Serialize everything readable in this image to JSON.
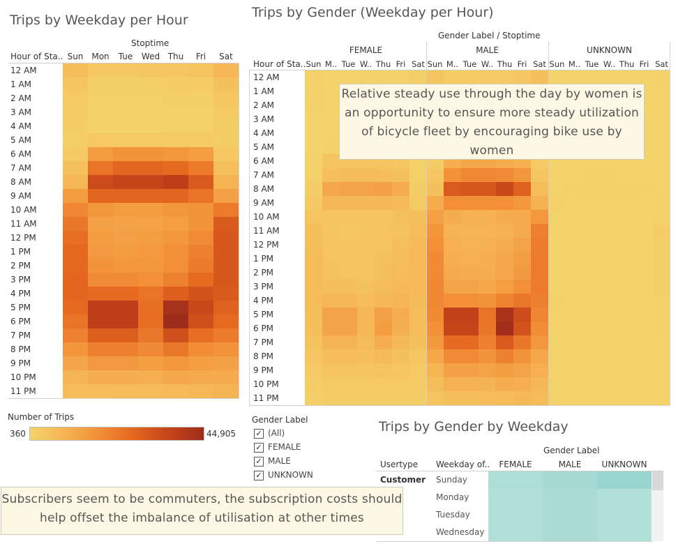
{
  "heatmap_week": {
    "title": "Trips by Weekday per Hour",
    "column_header": "Stoptime",
    "row_header": "Hour of Sta..",
    "columns": [
      "Sun",
      "Mon",
      "Tue",
      "Wed",
      "Thu",
      "Fri",
      "Sat"
    ],
    "rows": [
      "12 AM",
      "1 AM",
      "2 AM",
      "3 AM",
      "4 AM",
      "5 AM",
      "6 AM",
      "7 AM",
      "8 AM",
      "9 AM",
      "10 AM",
      "11 AM",
      "12 PM",
      "1 PM",
      "2 PM",
      "3 PM",
      "4 PM",
      "5 PM",
      "6 PM",
      "7 PM",
      "8 PM",
      "9 PM",
      "10 PM",
      "11 PM"
    ]
  },
  "heatmap_gender": {
    "title": "Trips by Gender (Weekday per Hour)",
    "column_header": "Gender Label  /  Stoptime",
    "row_header": "Hour of Sta..",
    "groups": [
      "FEMALE",
      "MALE",
      "UNKNOWN"
    ],
    "columns": [
      "Sun",
      "M..",
      "Tue",
      "W..",
      "Thu",
      "Fri",
      "Sat"
    ]
  },
  "legend": {
    "title": "Number of Trips",
    "min_label": "360",
    "max_label": "44,905",
    "colors": [
      "#f4d36b",
      "#f6b453",
      "#f28e36",
      "#e4651f",
      "#c64419",
      "#9d2d1a"
    ]
  },
  "gender_filter": {
    "title": "Gender Label",
    "items": [
      "(All)",
      "FEMALE",
      "MALE",
      "UNKNOWN"
    ],
    "checkmark": "✓"
  },
  "annotations": {
    "gender_note": "Relative steady use through the day by women is an opportunity to ensure more steady utilization of bicycle fleet by encouraging bike use by women",
    "subscriber_note": "Subscribers seem to be commuters, the subscription costs should help offset the imbalance of utilisation at other times"
  },
  "gender_weekday": {
    "title": "Trips by Gender by Weekday",
    "column_header": "Gender Label",
    "row_headers": [
      "Usertype",
      "Weekday of.."
    ],
    "columns": [
      "FEMALE",
      "MALE",
      "UNKNOWN"
    ],
    "usertype": "Customer",
    "rows": [
      "Sunday",
      "Monday",
      "Tuesday",
      "Wednesday"
    ]
  },
  "chart_data": [
    {
      "type": "heatmap",
      "title": "Trips by Weekday per Hour",
      "x": [
        "Sun",
        "Mon",
        "Tue",
        "Wed",
        "Thu",
        "Fri",
        "Sat"
      ],
      "y": [
        "12 AM",
        "1 AM",
        "2 AM",
        "3 AM",
        "4 AM",
        "5 AM",
        "6 AM",
        "7 AM",
        "8 AM",
        "9 AM",
        "10 AM",
        "11 AM",
        "12 PM",
        "1 PM",
        "2 PM",
        "3 PM",
        "4 PM",
        "5 PM",
        "6 PM",
        "7 PM",
        "8 PM",
        "9 PM",
        "10 PM",
        "11 PM"
      ],
      "zlim": [
        360,
        44905
      ],
      "values": [
        [
          6500,
          3500,
          3500,
          3800,
          4200,
          4800,
          8000
        ],
        [
          4500,
          1800,
          1700,
          1900,
          2200,
          2800,
          5500
        ],
        [
          3300,
          1200,
          1100,
          1200,
          1400,
          1800,
          4000
        ],
        [
          2500,
          900,
          800,
          900,
          1000,
          1200,
          3000
        ],
        [
          2000,
          1000,
          900,
          1000,
          1100,
          1200,
          2300
        ],
        [
          1800,
          3500,
          3300,
          3300,
          3200,
          3000,
          2000
        ],
        [
          3000,
          15000,
          17000,
          17000,
          16000,
          14500,
          3500
        ],
        [
          5500,
          24000,
          27000,
          27000,
          26000,
          22000,
          6000
        ],
        [
          8000,
          34000,
          36000,
          36000,
          38000,
          30000,
          9500
        ],
        [
          15000,
          27000,
          27000,
          27000,
          27000,
          24000,
          14000
        ],
        [
          19500,
          16000,
          15000,
          15000,
          16000,
          17000,
          22500
        ],
        [
          23000,
          14000,
          13000,
          13500,
          14500,
          17000,
          30000
        ],
        [
          25000,
          15000,
          14000,
          14500,
          16000,
          19000,
          31000
        ],
        [
          26500,
          15500,
          15000,
          15500,
          17500,
          21000,
          31000
        ],
        [
          26500,
          17000,
          16000,
          16000,
          18000,
          22000,
          31000
        ],
        [
          27000,
          19000,
          19000,
          18000,
          21000,
          26000,
          31000
        ],
        [
          27000,
          26000,
          26000,
          24000,
          29000,
          32000,
          30000
        ],
        [
          26000,
          38000,
          38000,
          25000,
          43000,
          35000,
          28000
        ],
        [
          24000,
          38000,
          38000,
          25000,
          44905,
          33000,
          26000
        ],
        [
          21000,
          29000,
          29000,
          23000,
          33000,
          25000,
          22000
        ],
        [
          16500,
          21000,
          21000,
          19000,
          23000,
          18500,
          17000
        ],
        [
          12500,
          15500,
          15500,
          14500,
          16000,
          14500,
          14000
        ],
        [
          9000,
          11000,
          11000,
          10500,
          12000,
          11500,
          11500
        ],
        [
          6500,
          6500,
          6800,
          7000,
          7500,
          8500,
          9500
        ]
      ]
    },
    {
      "type": "heatmap",
      "title": "Trips by Gender (Weekday per Hour)",
      "series": [
        {
          "name": "FEMALE",
          "values": [
            [
              1200,
              500,
              500,
              550,
              600,
              700,
              1400
            ],
            [
              800,
              250,
              250,
              260,
              300,
              350,
              1000
            ],
            [
              550,
              180,
              170,
              180,
              200,
              250,
              700
            ],
            [
              400,
              130,
              120,
              130,
              150,
              180,
              500
            ],
            [
              360,
              140,
              130,
              140,
              160,
              180,
              400
            ],
            [
              380,
              600,
              550,
              550,
              550,
              500,
              420
            ],
            [
              700,
              4500,
              5000,
              5000,
              4700,
              4200,
              800
            ],
            [
              1100,
              6000,
              6800,
              6800,
              6500,
              5500,
              1300
            ],
            [
              2000,
              12000,
              13000,
              13000,
              14000,
              11000,
              2200
            ],
            [
              3200,
              8500,
              8500,
              8500,
              8500,
              7500,
              3000
            ],
            [
              5000,
              5000,
              4500,
              4600,
              5000,
              5500,
              5800
            ],
            [
              6200,
              4500,
              4200,
              4300,
              4700,
              5200,
              7000
            ],
            [
              6500,
              4700,
              4500,
              4600,
              5000,
              5800,
              7500
            ],
            [
              7000,
              5000,
              4800,
              4900,
              5500,
              6500,
              7500
            ],
            [
              7000,
              5200,
              5000,
              5000,
              5700,
              6800,
              7500
            ],
            [
              7000,
              5800,
              5800,
              5600,
              6300,
              7800,
              7500
            ],
            [
              6800,
              8000,
              8000,
              7000,
              8500,
              9000,
              7200
            ],
            [
              6500,
              13000,
              13000,
              8000,
              14000,
              11000,
              7000
            ],
            [
              6000,
              13000,
              13000,
              8000,
              15000,
              10500,
              6500
            ],
            [
              5200,
              9500,
              9500,
              7000,
              11000,
              7800,
              5500
            ],
            [
              4000,
              6500,
              6500,
              6000,
              7200,
              5500,
              4200
            ],
            [
              3000,
              4800,
              4800,
              4500,
              5000,
              4200,
              3200
            ],
            [
              2100,
              3200,
              3200,
              3100,
              3500,
              3300,
              2600
            ],
            [
              1600,
              2000,
              2100,
              2200,
              2300,
              2500,
              2100
            ]
          ]
        },
        {
          "name": "MALE",
          "values": [
            [
              4800,
              2800,
              2800,
              3000,
              3300,
              3800,
              6000
            ],
            [
              3400,
              1450,
              1350,
              1500,
              1700,
              2200,
              4200
            ],
            [
              2600,
              950,
              880,
              950,
              1100,
              1450,
              3100
            ],
            [
              2000,
              700,
              640,
              720,
              800,
              950,
              2300
            ],
            [
              1500,
              780,
              700,
              780,
              850,
              950,
              1700
            ],
            [
              1300,
              2700,
              2600,
              2600,
              2500,
              2400,
              1400
            ],
            [
              2200,
              10500,
              12000,
              12000,
              11200,
              10200,
              2600
            ],
            [
              4100,
              17500,
              19500,
              19500,
              19000,
              16000,
              4400
            ],
            [
              5600,
              30000,
              31000,
              31000,
              35000,
              28000,
              7000
            ],
            [
              11000,
              18000,
              18000,
              18000,
              18000,
              16000,
              10000
            ],
            [
              14000,
              11000,
              10000,
              10000,
              11000,
              11500,
              16000
            ],
            [
              16500,
              9500,
              9000,
              9200,
              10000,
              11700,
              21000
            ],
            [
              18000,
              10200,
              9500,
              9900,
              11000,
              13000,
              22000
            ],
            [
              19000,
              10500,
              10200,
              10500,
              12000,
              14500,
              22000
            ],
            [
              19000,
              11700,
              11000,
              11000,
              12300,
              15200,
              22000
            ],
            [
              19500,
              13000,
              13000,
              12400,
              14700,
              18000,
              22000
            ],
            [
              19500,
              18000,
              18000,
              17000,
              20500,
              23000,
              21500
            ],
            [
              19000,
              37000,
              37000,
              24000,
              42000,
              34000,
              20000
            ],
            [
              17500,
              36000,
              36000,
              23000,
              44000,
              32000,
              18500
            ],
            [
              15300,
              26000,
              26000,
              21000,
              30000,
              23000,
              16000
            ],
            [
              12000,
              19000,
              19000,
              17000,
              21000,
              16800,
              12300
            ],
            [
              9100,
              14000,
              14000,
              13100,
              14500,
              13100,
              10200
            ],
            [
              6600,
              10000,
              10000,
              9600,
              10900,
              10400,
              8400
            ],
            [
              4700,
              6000,
              6200,
              6400,
              6900,
              7700,
              7000
            ]
          ]
        },
        {
          "name": "UNKNOWN",
          "values": [
            [
              500,
              200,
              200,
              250,
              300,
              300,
              600
            ],
            [
              400,
              100,
              100,
              140,
              200,
              250,
              300
            ],
            [
              150,
              70,
              50,
              70,
              100,
              100,
              200
            ],
            [
              100,
              70,
              40,
              50,
              50,
              70,
              200
            ],
            [
              140,
              80,
              70,
              80,
              90,
              70,
              200
            ],
            [
              120,
              200,
              150,
              150,
              150,
              100,
              180
            ],
            [
              100,
              500,
              500,
              500,
              500,
              400,
              100
            ],
            [
              300,
              500,
              700,
              700,
              500,
              500,
              300
            ],
            [
              400,
              1000,
              1000,
              1000,
              1000,
              1000,
              300
            ],
            [
              800,
              500,
              500,
              500,
              500,
              500,
              1000
            ],
            [
              500,
              500,
              500,
              400,
              500,
              500,
              600
            ],
            [
              300,
              500,
              500,
              500,
              500,
              500,
              2000
            ],
            [
              500,
              500,
              400,
              500,
              500,
              500,
              1500
            ],
            [
              500,
              400,
              400,
              500,
              500,
              500,
              1500
            ],
            [
              500,
              500,
              500,
              500,
              500,
              500,
              1500
            ],
            [
              500,
              500,
              500,
              500,
              500,
              500,
              1500
            ],
            [
              700,
              500,
              500,
              500,
              500,
              500,
              1300
            ],
            [
              500,
              500,
              500,
              500,
              500,
              500,
              1000
            ],
            [
              500,
              500,
              500,
              500,
              500,
              500,
              1000
            ],
            [
              500,
              500,
              500,
              500,
              500,
              500,
              500
            ],
            [
              500,
              500,
              500,
              500,
              500,
              500,
              500
            ],
            [
              400,
              500,
              500,
              500,
              500,
              500,
              500
            ],
            [
              300,
              500,
              500,
              500,
              500,
              500,
              500
            ],
            [
              200,
              500,
              500,
              500,
              500,
              500,
              400
            ]
          ]
        }
      ]
    },
    {
      "type": "table",
      "title": "Trips by Gender by Weekday",
      "columns": [
        "FEMALE",
        "MALE",
        "UNKNOWN"
      ],
      "rows": [
        "Sunday",
        "Monday",
        "Tuesday",
        "Wednesday"
      ],
      "cell_colors": [
        [
          "#aedfd6",
          "#a4dad3",
          "#98d5cf"
        ],
        [
          "#b3e1d8",
          "#acddd5",
          "#b3e1d8"
        ],
        [
          "#b3e1d8",
          "#acddd5",
          "#b3e1d8"
        ],
        [
          "#b3e1d8",
          "#acddd5",
          "#b3e1d8"
        ]
      ]
    }
  ]
}
